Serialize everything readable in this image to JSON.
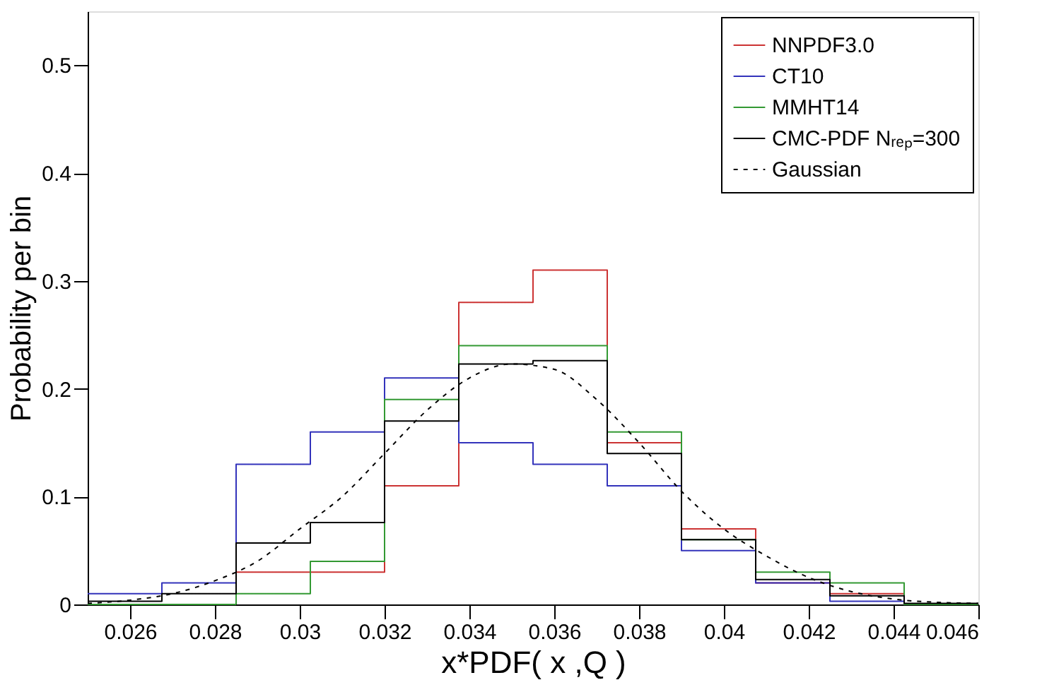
{
  "chart_data": {
    "type": "histogram",
    "xlabel": "x*PDF( x ,Q )",
    "ylabel": "Probability per bin",
    "bins": [
      0.025,
      0.02675,
      0.0285,
      0.03025,
      0.032,
      0.03375,
      0.0355,
      0.03725,
      0.039,
      0.04075,
      0.0425,
      0.04425,
      0.046
    ],
    "series": [
      {
        "name": "NNPDF3.0",
        "color": "#cc3333",
        "values": [
          0,
          0,
          0.03,
          0.03,
          0.11,
          0.28,
          0.31,
          0.15,
          0.07,
          0.02,
          0.01,
          0
        ]
      },
      {
        "name": "CT10",
        "color": "#3333bb",
        "values": [
          0.01,
          0.02,
          0.13,
          0.16,
          0.21,
          0.15,
          0.13,
          0.11,
          0.05,
          0.02,
          0.003,
          0
        ]
      },
      {
        "name": "MMHT14",
        "color": "#339933",
        "values": [
          0,
          0,
          0.01,
          0.04,
          0.19,
          0.24,
          0.24,
          0.16,
          0.06,
          0.03,
          0.02,
          0
        ]
      },
      {
        "name": "CMC-PDF Nᵣₑₚ=300",
        "color": "#000000",
        "values": [
          0.003,
          0.01,
          0.057,
          0.076,
          0.17,
          0.223,
          0.226,
          0.14,
          0.06,
          0.023,
          0.008,
          0.001
        ]
      },
      {
        "name": "Gaussian",
        "type": "line",
        "color": "#000000",
        "line_style": "dotted",
        "x": [
          0.025,
          0.026,
          0.027,
          0.028,
          0.029,
          0.03,
          0.031,
          0.032,
          0.033,
          0.034,
          0.035,
          0.036,
          0.037,
          0.038,
          0.039,
          0.04,
          0.041,
          0.042,
          0.043,
          0.044,
          0.045,
          0.046
        ],
        "values": [
          0.001,
          0.004,
          0.01,
          0.022,
          0.04,
          0.07,
          0.1,
          0.14,
          0.18,
          0.21,
          0.223,
          0.218,
          0.19,
          0.15,
          0.105,
          0.07,
          0.045,
          0.025,
          0.012,
          0.005,
          0.002,
          0.001
        ]
      }
    ],
    "xlim": [
      0.025,
      0.046
    ],
    "xticks": [
      0.026,
      0.028,
      0.03,
      0.032,
      0.034,
      0.036,
      0.038,
      0.04,
      0.042,
      0.044,
      0.046
    ],
    "ylim": [
      0,
      0.55
    ],
    "yticks": [
      0,
      0.1,
      0.2,
      0.3,
      0.4,
      0.5
    ],
    "grid": false,
    "legend": "top right"
  }
}
